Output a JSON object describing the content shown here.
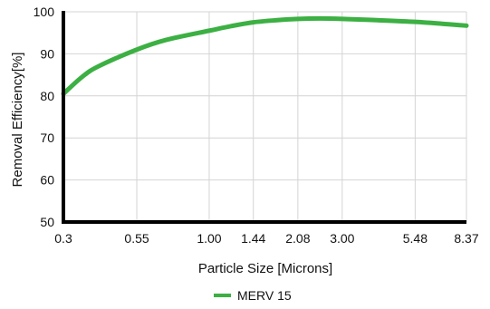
{
  "chart_data": {
    "type": "line",
    "title": "",
    "xlabel": "Particle Size [Microns]",
    "ylabel": "Removal Efficiency[%]",
    "x_scale": "log",
    "categories": [
      "0.3",
      "0.55",
      "1.00",
      "1.44",
      "2.08",
      "3.00",
      "5.48",
      "8.37"
    ],
    "ylim": [
      50,
      100
    ],
    "yticks": [
      50,
      60,
      70,
      80,
      90,
      100
    ],
    "grid": true,
    "legend": "bottom-center",
    "series": [
      {
        "name": "MERV 15",
        "color": "#3cb043",
        "x": [
          0.3,
          0.35,
          0.4,
          0.55,
          0.7,
          1.0,
          1.2,
          1.44,
          1.75,
          2.08,
          2.5,
          3.0,
          4.0,
          5.48,
          7.0,
          8.37
        ],
        "values": [
          80.5,
          84.5,
          87.0,
          91.0,
          93.3,
          95.5,
          96.6,
          97.5,
          98.0,
          98.3,
          98.4,
          98.3,
          98.0,
          97.6,
          97.1,
          96.7
        ]
      }
    ]
  }
}
